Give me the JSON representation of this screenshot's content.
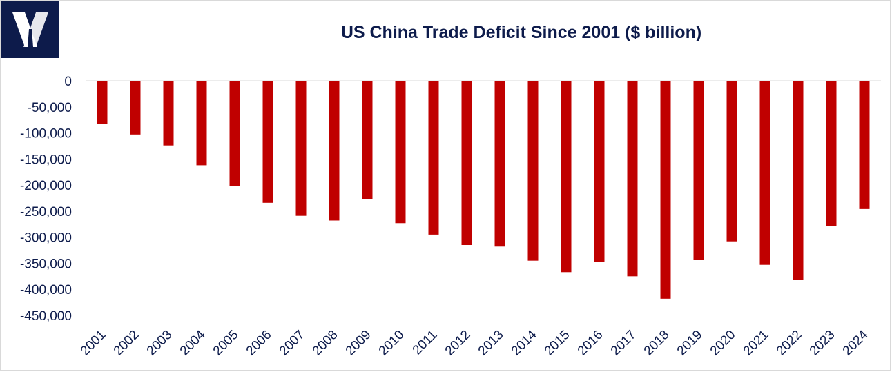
{
  "brand": {
    "logo_icon": "x-logo-icon",
    "logo_color": "#0d1b4b"
  },
  "chart_data": {
    "type": "bar",
    "title": "US China Trade Deficit Since 2001 ($ billion)",
    "xlabel": "",
    "ylabel": "",
    "ylim": [
      -450000,
      0
    ],
    "yticks": [
      0,
      -50000,
      -100000,
      -150000,
      -200000,
      -250000,
      -300000,
      -350000,
      -400000,
      -450000
    ],
    "ytick_labels": [
      "0",
      "-50,000",
      "-100,000",
      "-150,000",
      "-200,000",
      "-250,000",
      "-300,000",
      "-350,000",
      "-400,000",
      "-450,000"
    ],
    "categories": [
      "2001",
      "2002",
      "2003",
      "2004",
      "2005",
      "2006",
      "2007",
      "2008",
      "2009",
      "2010",
      "2011",
      "2012",
      "2013",
      "2014",
      "2015",
      "2016",
      "2017",
      "2018",
      "2019",
      "2020",
      "2021",
      "2022",
      "2023",
      "2024"
    ],
    "values": [
      -83000,
      -103000,
      -124000,
      -162000,
      -202000,
      -234000,
      -259000,
      -268000,
      -227000,
      -273000,
      -295000,
      -315000,
      -318000,
      -345000,
      -367000,
      -347000,
      -375000,
      -418000,
      -343000,
      -308000,
      -353000,
      -382000,
      -279000,
      -246000
    ],
    "bar_color": "#c00000",
    "grid": false
  }
}
